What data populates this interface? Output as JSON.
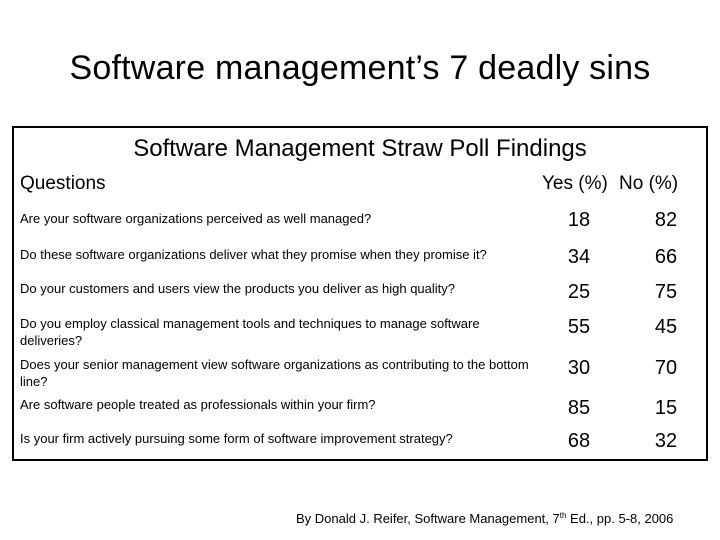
{
  "slide": {
    "title": "Software management’s 7 deadly sins"
  },
  "table": {
    "caption": "Software Management Straw Poll Findings",
    "headers": {
      "questions": "Questions",
      "yes": "Yes (%)",
      "no": "No (%)"
    },
    "rows": [
      {
        "question": "Are your software organizations perceived as well managed?",
        "yes": "18",
        "no": "82"
      },
      {
        "question": "Do these software organizations deliver what they promise when they promise it?",
        "yes": "34",
        "no": "66"
      },
      {
        "question": "Do your customers and users view the products you deliver as high quality?",
        "yes": "25",
        "no": "75"
      },
      {
        "question": "Do you employ classical management tools and techniques to manage software deliveries?",
        "yes": "55",
        "no": "45"
      },
      {
        "question": "Does your senior management view software organizations as contributing to the bottom line?",
        "yes": "30",
        "no": "70"
      },
      {
        "question": "Are software people treated as professionals within your firm?",
        "yes": "85",
        "no": "15"
      },
      {
        "question": "Is your firm actively pursuing some form of software improvement strategy?",
        "yes": "68",
        "no": "32"
      }
    ]
  },
  "citation": {
    "before": "By Donald J. Reifer, Software Management, 7",
    "sup": "th",
    "after": " Ed., pp. 5-8, 2006"
  }
}
